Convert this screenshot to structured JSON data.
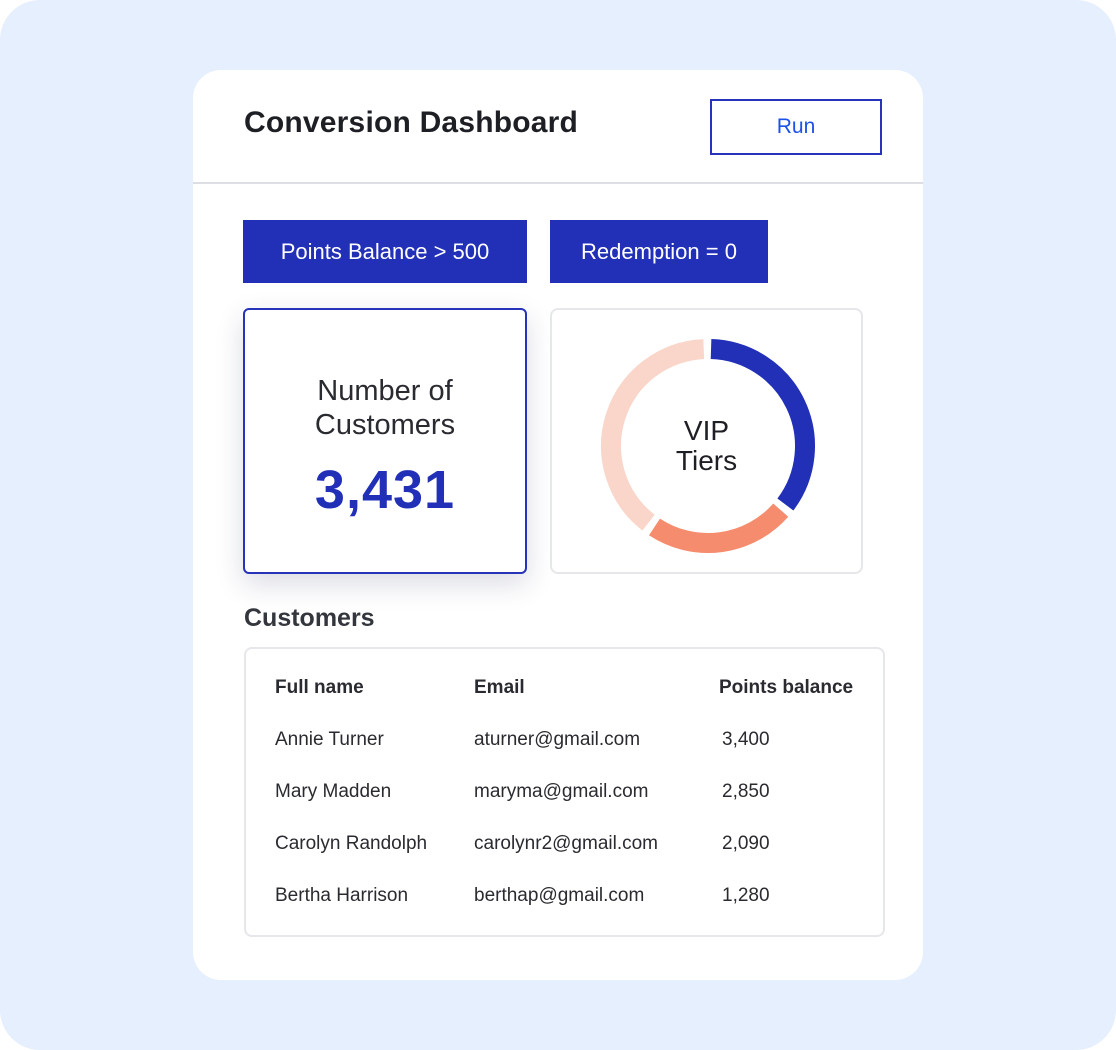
{
  "header": {
    "title": "Conversion Dashboard",
    "run_label": "Run"
  },
  "filters": [
    {
      "label": "Points Balance > 500"
    },
    {
      "label": "Redemption = 0"
    }
  ],
  "kpi": {
    "label_line1": "Number of",
    "label_line2": "Customers",
    "value": "3,431"
  },
  "donut": {
    "label_line1": "VIP",
    "label_line2": "Tiers",
    "segments": [
      {
        "fraction": 0.36,
        "color": "#2230b8"
      },
      {
        "fraction": 0.24,
        "color": "#f58c6e"
      },
      {
        "fraction": 0.4,
        "color": "#f9d6c9"
      }
    ]
  },
  "customers": {
    "title": "Customers",
    "columns": [
      "Full name",
      "Email",
      "Points balance"
    ],
    "rows": [
      [
        "Annie Turner",
        "aturner@gmail.com",
        "3,400"
      ],
      [
        "Mary Madden",
        "maryma@gmail.com",
        "2,850"
      ],
      [
        "Carolyn Randolph",
        "carolynr2@gmail.com",
        "2,090"
      ],
      [
        "Bertha Harrison",
        "berthap@gmail.com",
        "1,280"
      ]
    ]
  }
}
